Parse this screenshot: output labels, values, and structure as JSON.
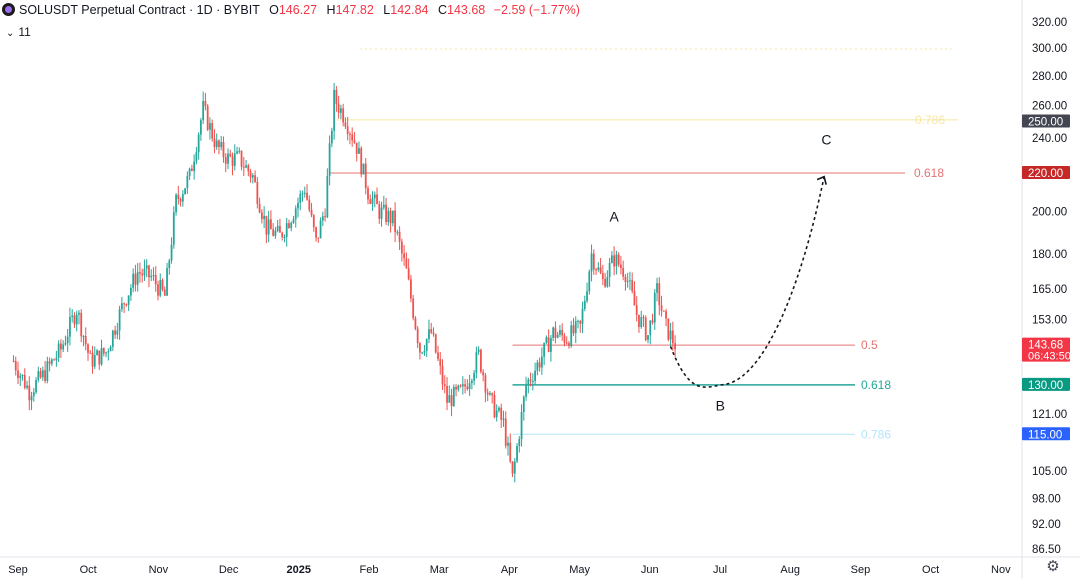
{
  "header": {
    "symbol": "SOLUSDT Perpetual Contract · 1D · BYBIT",
    "open_label": "O",
    "open_value": "146.27",
    "high_label": "H",
    "high_value": "147.82",
    "low_label": "L",
    "low_value": "142.84",
    "close_label": "C",
    "close_value": "143.68",
    "change": "−2.59 (−1.77%)",
    "indicator_count": "11"
  },
  "colors": {
    "up": "#26a69a",
    "down": "#ef5350",
    "fib_red": "#e57373",
    "fib_green": "#089981",
    "fib_blue": "#b3e5fc",
    "fib_yellow": "#f7e7a3"
  },
  "chart_data": {
    "type": "candlestick",
    "y_scale": "log",
    "y_ticks": [
      "320.00",
      "300.00",
      "280.00",
      "260.00",
      "240.00",
      "220.00",
      "200.00",
      "180.00",
      "165.00",
      "153.00",
      "143.68",
      "130.00",
      "121.00",
      "115.00",
      "105.00",
      "98.00",
      "92.00",
      "86.50"
    ],
    "x_ticks": [
      "Sep",
      "Oct",
      "Nov",
      "Dec",
      "2025",
      "Feb",
      "Mar",
      "Apr",
      "May",
      "Jun",
      "Jul",
      "Aug",
      "Sep",
      "Oct",
      "Nov"
    ],
    "price_badges": [
      {
        "price": 250.0,
        "label": "250.00",
        "color": "#434651"
      },
      {
        "price": 220.0,
        "label": "220.00",
        "color": "#c62828"
      },
      {
        "price": 143.68,
        "label": "143.68",
        "sublabel": "06:43:50",
        "color": "#f23645"
      },
      {
        "price": 130.0,
        "label": "130.00",
        "color": "#089981"
      },
      {
        "price": 115.0,
        "label": "115.00",
        "color": "#2962ff"
      }
    ],
    "fib_levels": [
      {
        "label": "0.786",
        "price": 251.0,
        "color": "#f7e7a3",
        "x_start": "2025-01-20"
      },
      {
        "label": "0.618",
        "price": 220.0,
        "color": "#e57373",
        "x_start": "2025-01-17"
      },
      {
        "label": "0.5",
        "price": 143.5,
        "color": "#e57373",
        "x_start": "2025-04-08"
      },
      {
        "label": "0.618",
        "price": 130.0,
        "color": "#26a69a",
        "x_start": "2025-04-08"
      },
      {
        "label": "0.786",
        "price": 115.0,
        "color": "#b3e5fc",
        "x_start": "2025-04-08"
      }
    ],
    "wave_labels": [
      {
        "text": "A",
        "date": "2025-05-23",
        "price": 195
      },
      {
        "text": "B",
        "date": "2025-07-09",
        "price": 122
      },
      {
        "text": "C",
        "date": "2025-08-25",
        "price": 236
      }
    ],
    "projection": [
      {
        "date": "2025-06-17",
        "price": 143
      },
      {
        "date": "2025-07-09",
        "price": 130
      },
      {
        "date": "2025-08-24",
        "price": 218
      }
    ],
    "price_points": [
      [
        "2024-08-30",
        138
      ],
      [
        "2024-09-06",
        128
      ],
      [
        "2024-09-12",
        133
      ],
      [
        "2024-09-20",
        142
      ],
      [
        "2024-09-27",
        157
      ],
      [
        "2024-10-03",
        138
      ],
      [
        "2024-10-10",
        141
      ],
      [
        "2024-10-18",
        160
      ],
      [
        "2024-10-24",
        172
      ],
      [
        "2024-10-30",
        170
      ],
      [
        "2024-11-05",
        162
      ],
      [
        "2024-11-10",
        205
      ],
      [
        "2024-11-16",
        218
      ],
      [
        "2024-11-22",
        258
      ],
      [
        "2024-11-28",
        235
      ],
      [
        "2024-12-03",
        228
      ],
      [
        "2024-12-08",
        228
      ],
      [
        "2024-12-14",
        218
      ],
      [
        "2024-12-20",
        192
      ],
      [
        "2024-12-26",
        188
      ],
      [
        "2025-01-01",
        200
      ],
      [
        "2025-01-06",
        212
      ],
      [
        "2025-01-11",
        185
      ],
      [
        "2025-01-15",
        202
      ],
      [
        "2025-01-19",
        265
      ],
      [
        "2025-01-24",
        252
      ],
      [
        "2025-01-29",
        235
      ],
      [
        "2025-02-03",
        210
      ],
      [
        "2025-02-08",
        200
      ],
      [
        "2025-02-14",
        196
      ],
      [
        "2025-02-20",
        172
      ],
      [
        "2025-02-26",
        142
      ],
      [
        "2025-03-03",
        148
      ],
      [
        "2025-03-10",
        125
      ],
      [
        "2025-03-17",
        128
      ],
      [
        "2025-03-24",
        140
      ],
      [
        "2025-03-29",
        125
      ],
      [
        "2025-04-04",
        118
      ],
      [
        "2025-04-08",
        103
      ],
      [
        "2025-04-14",
        130
      ],
      [
        "2025-04-20",
        138
      ],
      [
        "2025-04-26",
        148
      ],
      [
        "2025-05-02",
        146
      ],
      [
        "2025-05-08",
        150
      ],
      [
        "2025-05-13",
        180
      ],
      [
        "2025-05-18",
        168
      ],
      [
        "2025-05-23",
        178
      ],
      [
        "2025-05-28",
        172
      ],
      [
        "2025-06-02",
        155
      ],
      [
        "2025-06-07",
        147
      ],
      [
        "2025-06-11",
        164
      ],
      [
        "2025-06-15",
        150
      ],
      [
        "2025-06-19",
        143.68
      ]
    ]
  }
}
